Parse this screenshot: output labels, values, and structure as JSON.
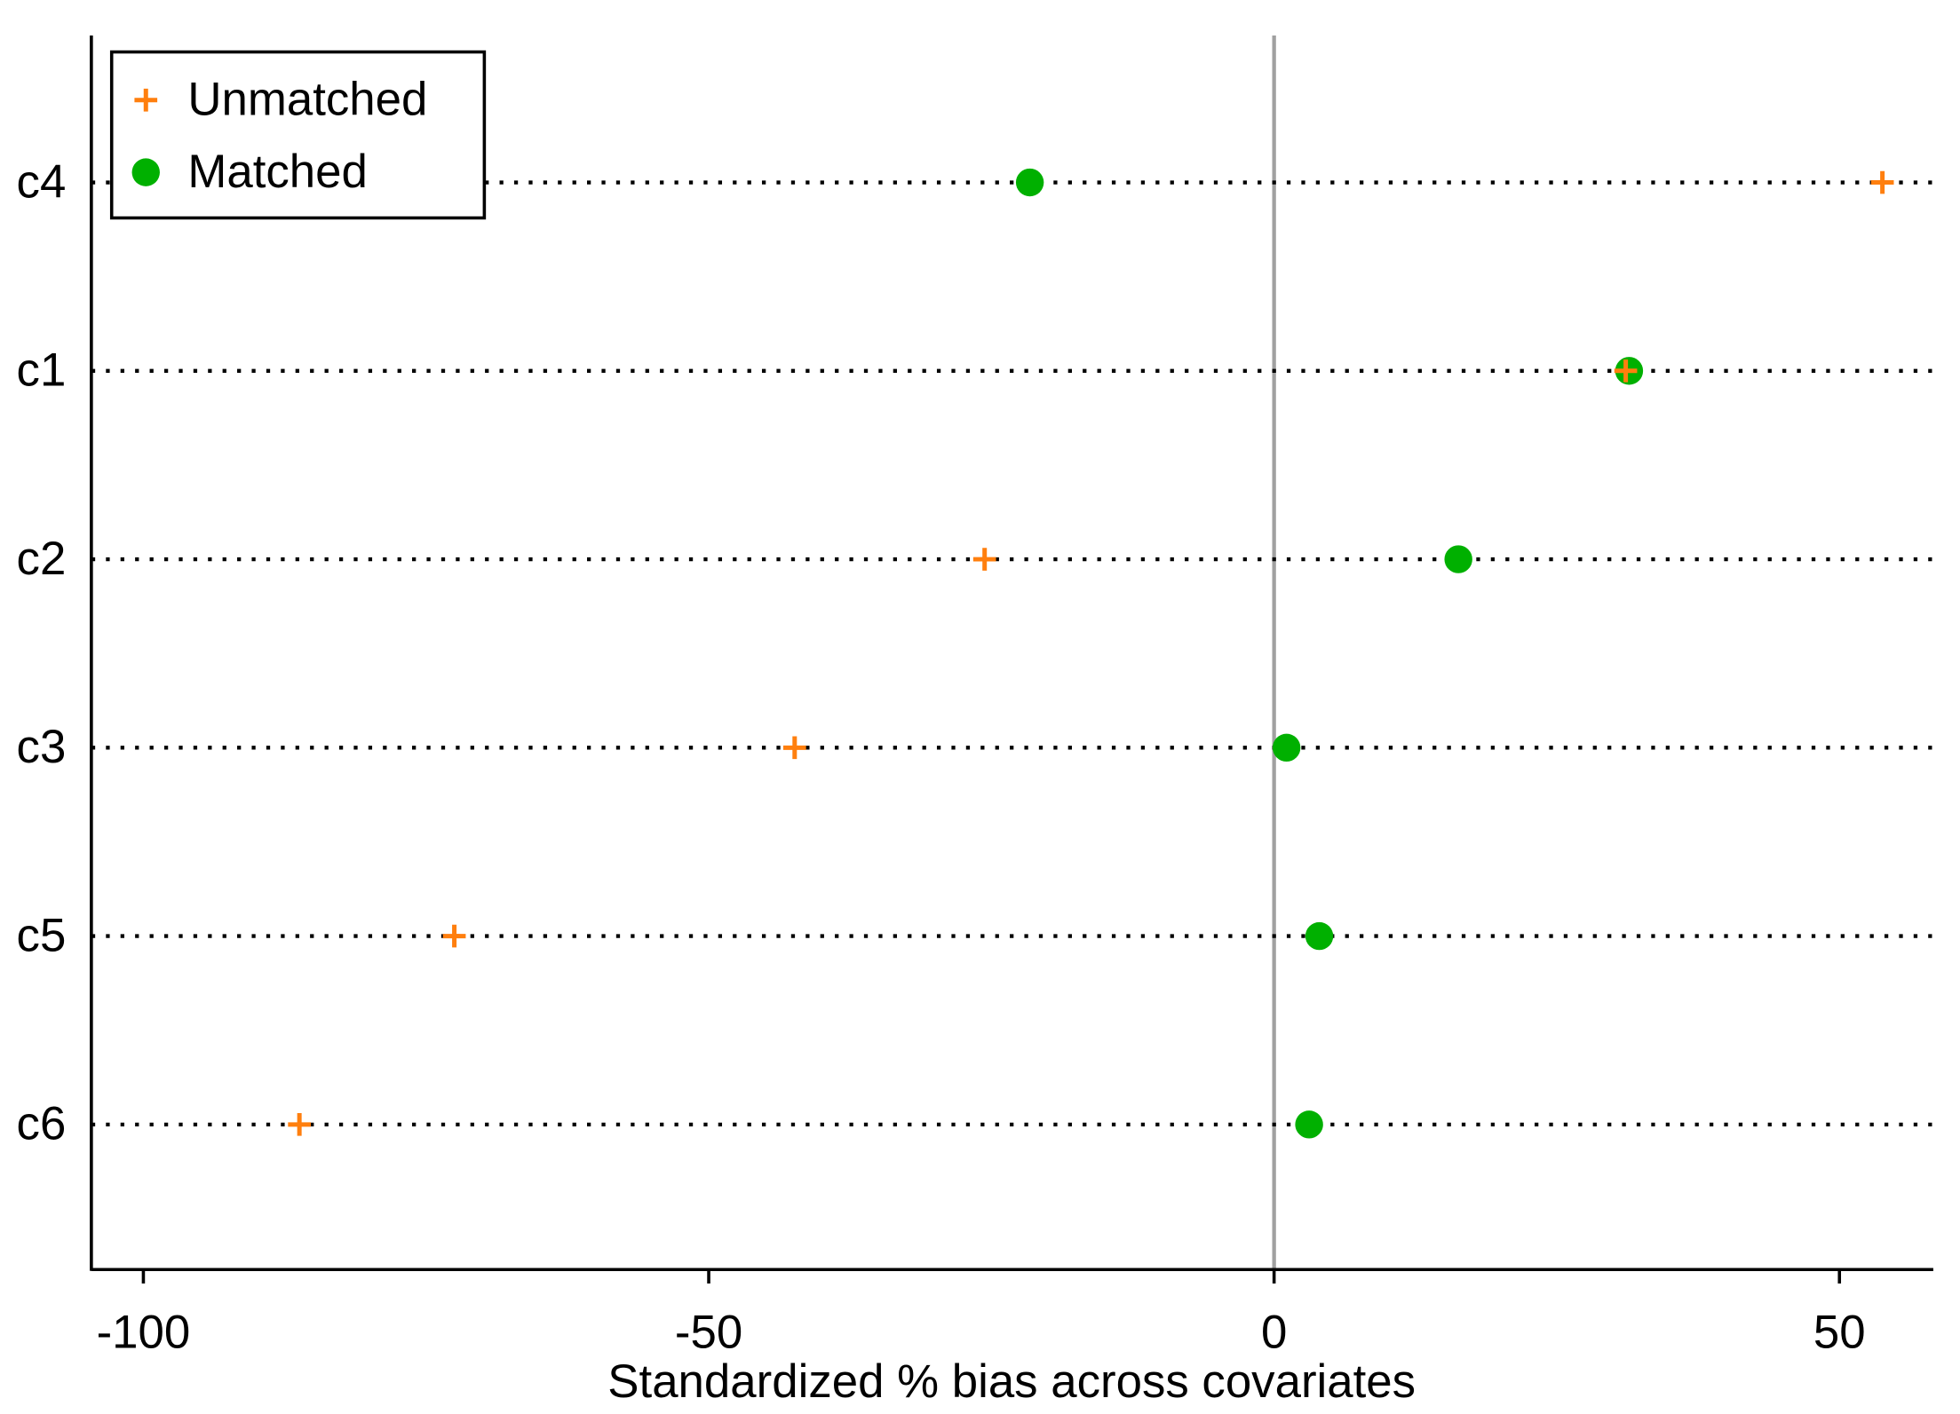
{
  "chart_data": {
    "type": "dot",
    "xlabel": "Standardized % bias across covariates",
    "categories": [
      "c4",
      "c1",
      "c2",
      "c3",
      "c5",
      "c6"
    ],
    "series": [
      {
        "name": "Unmatched",
        "color": "#ff7f0e",
        "marker": "plus",
        "values": [
          53.8,
          31.1,
          -25.6,
          -42.4,
          -72.5,
          -86.2
        ]
      },
      {
        "name": "Matched",
        "color": "#00b000",
        "marker": "circle",
        "values": [
          -21.6,
          31.4,
          16.3,
          1.1,
          4.0,
          3.1
        ]
      }
    ],
    "xlim": [
      -104.6,
      58.3
    ],
    "xticks": [
      -100,
      -50,
      0,
      50
    ],
    "reference_line": 0,
    "legend": "top-left"
  }
}
